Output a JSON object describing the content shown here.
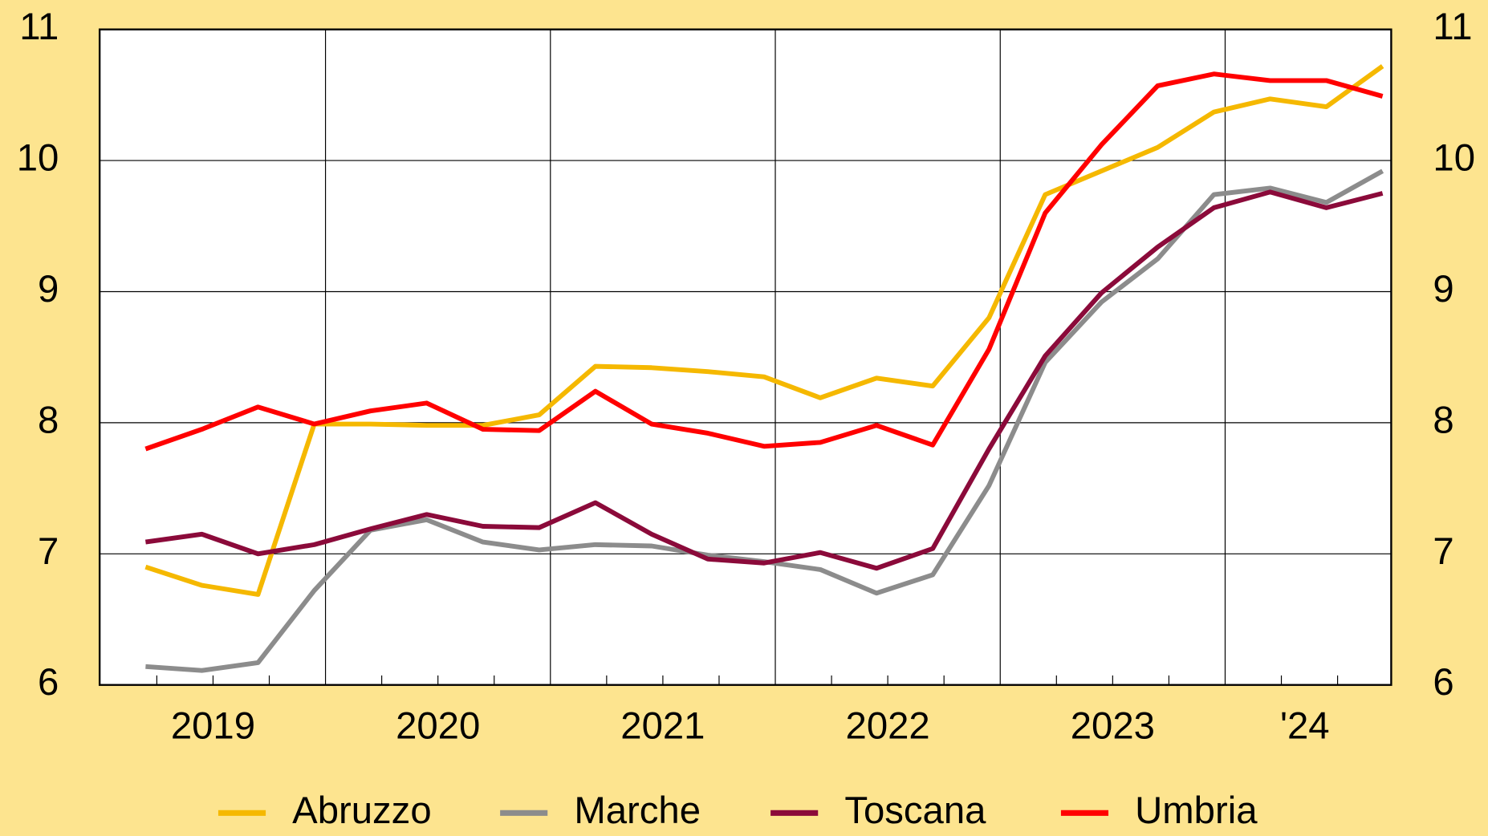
{
  "chart_data": {
    "type": "line",
    "categories": [
      null,
      null,
      null,
      null,
      null,
      null,
      null,
      null,
      null,
      null,
      null,
      null,
      null,
      null,
      null,
      null,
      null,
      null,
      null,
      null,
      null,
      null,
      null
    ],
    "year_labels": [
      "2019",
      "2020",
      "2021",
      "2022",
      "2023",
      "'24"
    ],
    "series": [
      {
        "name": "Abruzzo",
        "color": "#f5b800",
        "values": [
          6.9,
          6.76,
          6.69,
          7.99,
          7.99,
          7.98,
          7.98,
          8.06,
          8.43,
          8.42,
          8.39,
          8.35,
          8.19,
          8.34,
          8.28,
          8.8,
          9.74,
          9.92,
          10.1,
          10.37,
          10.47,
          10.41,
          10.72
        ]
      },
      {
        "name": "Marche",
        "color": "#8c8c8c",
        "values": [
          6.14,
          6.11,
          6.17,
          6.72,
          7.18,
          7.26,
          7.09,
          7.03,
          7.07,
          7.06,
          6.99,
          6.94,
          6.88,
          6.7,
          6.84,
          7.52,
          8.46,
          8.92,
          9.25,
          9.74,
          9.79,
          9.68,
          9.92
        ]
      },
      {
        "name": "Toscana",
        "color": "#8b0a3a",
        "values": [
          7.09,
          7.15,
          7.0,
          7.07,
          7.19,
          7.3,
          7.21,
          7.2,
          7.39,
          7.15,
          6.96,
          6.93,
          7.01,
          6.89,
          7.04,
          7.8,
          8.51,
          8.99,
          9.34,
          9.64,
          9.76,
          9.64,
          9.75
        ]
      },
      {
        "name": "Umbria",
        "color": "#ff0000",
        "values": [
          7.8,
          7.95,
          8.12,
          7.99,
          8.09,
          8.15,
          7.95,
          7.94,
          8.24,
          7.99,
          7.92,
          7.82,
          7.85,
          7.98,
          7.83,
          8.56,
          9.6,
          10.12,
          10.57,
          10.66,
          10.61,
          10.61,
          10.49
        ]
      }
    ],
    "ylim": [
      6,
      11
    ],
    "yticks": [
      6,
      7,
      8,
      9,
      10,
      11
    ],
    "grid": true
  }
}
